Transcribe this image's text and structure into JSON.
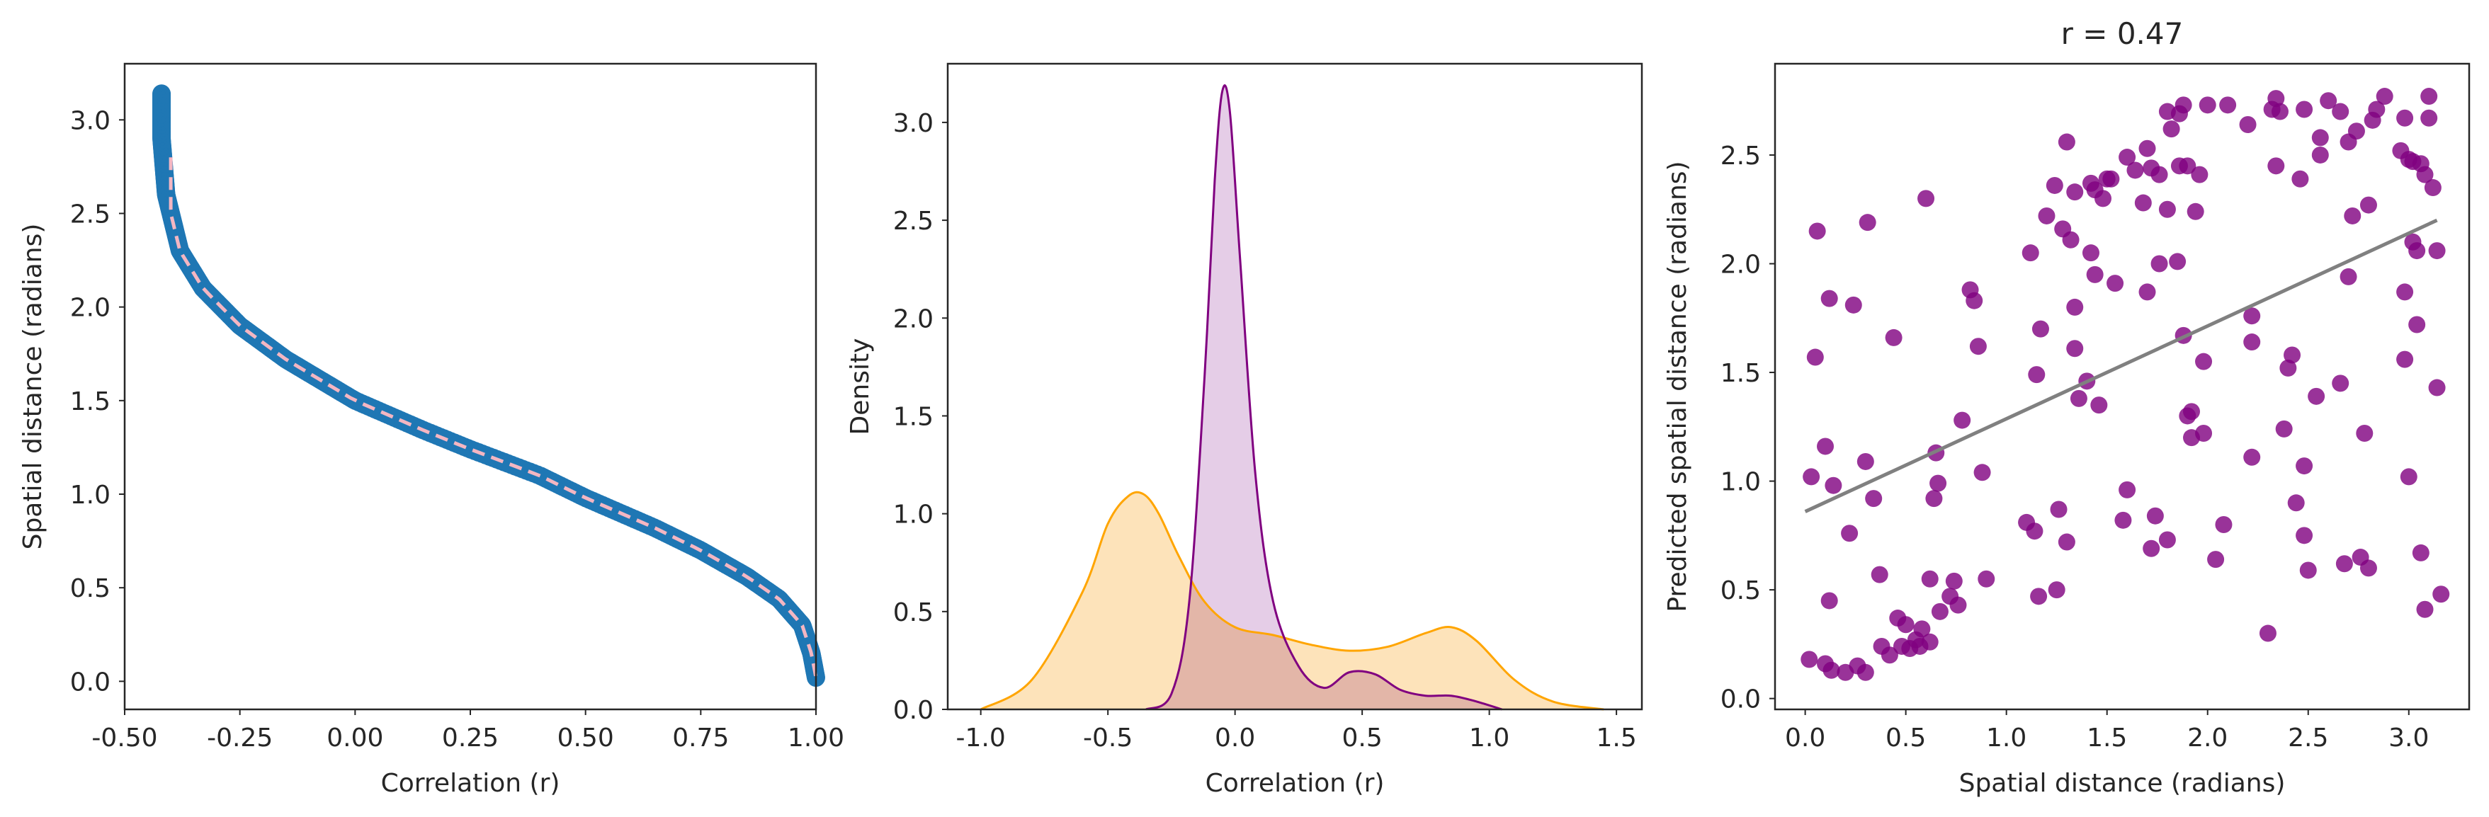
{
  "chart_data": [
    {
      "type": "scatter",
      "xlabel": "Correlation (r)",
      "ylabel": "Spatial distance (radians)",
      "xlim": [
        -0.5,
        1.0
      ],
      "ylim": [
        -0.15,
        3.3
      ],
      "xticks": [
        "-0.50",
        "-0.25",
        "0.00",
        "0.25",
        "0.50",
        "0.75",
        "1.00"
      ],
      "yticks": [
        "0.0",
        "0.5",
        "1.0",
        "1.5",
        "2.0",
        "2.5",
        "3.0"
      ],
      "grid": false,
      "series": [
        {
          "kind": "scatter",
          "color": "#1f77b4",
          "x_range": [
            -0.42,
            1.0
          ],
          "y_range": [
            0.0,
            3.14
          ],
          "description_points": [
            [
              -0.42,
              3.14
            ],
            [
              -0.42,
              2.9
            ],
            [
              -0.41,
              2.6
            ],
            [
              -0.38,
              2.3
            ],
            [
              -0.33,
              2.1
            ],
            [
              -0.25,
              1.9
            ],
            [
              -0.15,
              1.72
            ],
            [
              0.0,
              1.5
            ],
            [
              0.15,
              1.34
            ],
            [
              0.25,
              1.24
            ],
            [
              0.4,
              1.1
            ],
            [
              0.5,
              0.98
            ],
            [
              0.65,
              0.82
            ],
            [
              0.75,
              0.7
            ],
            [
              0.85,
              0.56
            ],
            [
              0.92,
              0.44
            ],
            [
              0.97,
              0.3
            ],
            [
              0.99,
              0.15
            ],
            [
              1.0,
              0.02
            ]
          ]
        },
        {
          "kind": "line",
          "style": "dashed",
          "color": "#f4b6c2",
          "x_range": [
            -0.4,
            1.0
          ],
          "y_range": [
            2.8,
            0.02
          ]
        }
      ]
    },
    {
      "type": "area",
      "xlabel": "Correlation (r)",
      "ylabel": "Density",
      "xlim": [
        -1.13,
        1.6
      ],
      "ylim": [
        0.0,
        3.3
      ],
      "xticks": [
        "-1.0",
        "-0.5",
        "0.0",
        "0.5",
        "1.0",
        "1.5"
      ],
      "yticks": [
        "0.0",
        "0.5",
        "1.0",
        "1.5",
        "2.0",
        "2.5",
        "3.0"
      ],
      "grid": false,
      "series": [
        {
          "color": "#800080",
          "fill": "#dcbcdf",
          "x": [
            -0.35,
            -0.25,
            -0.18,
            -0.12,
            -0.08,
            -0.05,
            -0.02,
            0.02,
            0.08,
            0.15,
            0.25,
            0.35,
            0.45,
            0.55,
            0.65,
            0.75,
            0.85,
            0.95,
            1.05
          ],
          "y": [
            0.0,
            0.08,
            0.55,
            1.7,
            2.7,
            3.16,
            3.05,
            2.3,
            1.2,
            0.55,
            0.22,
            0.11,
            0.19,
            0.18,
            0.1,
            0.07,
            0.07,
            0.04,
            0.0
          ]
        },
        {
          "color": "#ffa500",
          "fill": "#fde0b2",
          "x": [
            -1.0,
            -0.8,
            -0.6,
            -0.5,
            -0.42,
            -0.36,
            -0.3,
            -0.22,
            -0.12,
            0.0,
            0.15,
            0.3,
            0.45,
            0.6,
            0.75,
            0.85,
            0.95,
            1.1,
            1.25,
            1.45
          ],
          "y": [
            0.0,
            0.15,
            0.6,
            0.95,
            1.09,
            1.1,
            1.0,
            0.78,
            0.55,
            0.42,
            0.38,
            0.33,
            0.3,
            0.32,
            0.39,
            0.42,
            0.35,
            0.15,
            0.04,
            0.0
          ]
        }
      ]
    },
    {
      "type": "scatter",
      "title": "r = 0.47",
      "xlabel": "Spatial distance (radians)",
      "ylabel": "Predicted spatial distance (radians)",
      "xlim": [
        -0.15,
        3.3
      ],
      "ylim": [
        -0.05,
        2.92
      ],
      "xticks": [
        "0.0",
        "0.5",
        "1.0",
        "1.5",
        "2.0",
        "2.5",
        "3.0"
      ],
      "yticks": [
        "0.0",
        "0.5",
        "1.0",
        "1.5",
        "2.0",
        "2.5"
      ],
      "grid": false,
      "series": [
        {
          "kind": "scatter",
          "color": "#800080",
          "points": [
            [
              0.02,
              0.18
            ],
            [
              0.03,
              1.02
            ],
            [
              0.05,
              1.57
            ],
            [
              0.06,
              2.15
            ],
            [
              0.1,
              0.16
            ],
            [
              0.1,
              1.16
            ],
            [
              0.12,
              0.45
            ],
            [
              0.13,
              0.13
            ],
            [
              0.12,
              1.84
            ],
            [
              0.14,
              0.98
            ],
            [
              0.2,
              0.12
            ],
            [
              0.22,
              0.76
            ],
            [
              0.24,
              1.81
            ],
            [
              0.26,
              0.15
            ],
            [
              0.3,
              0.12
            ],
            [
              0.3,
              1.09
            ],
            [
              0.31,
              2.19
            ],
            [
              0.34,
              0.92
            ],
            [
              0.37,
              0.57
            ],
            [
              0.38,
              0.24
            ],
            [
              0.42,
              0.2
            ],
            [
              0.44,
              1.66
            ],
            [
              0.46,
              0.37
            ],
            [
              0.48,
              0.24
            ],
            [
              0.5,
              0.34
            ],
            [
              0.52,
              0.23
            ],
            [
              0.55,
              0.27
            ],
            [
              0.57,
              0.24
            ],
            [
              0.58,
              0.32
            ],
            [
              0.6,
              2.3
            ],
            [
              0.62,
              0.55
            ],
            [
              0.62,
              0.26
            ],
            [
              0.64,
              0.92
            ],
            [
              0.65,
              1.13
            ],
            [
              0.66,
              0.99
            ],
            [
              0.67,
              0.4
            ],
            [
              0.72,
              0.47
            ],
            [
              0.74,
              0.54
            ],
            [
              0.76,
              0.43
            ],
            [
              0.78,
              1.28
            ],
            [
              0.82,
              1.88
            ],
            [
              0.84,
              1.83
            ],
            [
              0.86,
              1.62
            ],
            [
              0.88,
              1.04
            ],
            [
              0.9,
              0.55
            ],
            [
              1.1,
              0.81
            ],
            [
              1.12,
              2.05
            ],
            [
              1.14,
              0.77
            ],
            [
              1.15,
              1.49
            ],
            [
              1.16,
              0.47
            ],
            [
              1.17,
              1.7
            ],
            [
              1.2,
              2.22
            ],
            [
              1.24,
              2.36
            ],
            [
              1.25,
              0.5
            ],
            [
              1.26,
              0.87
            ],
            [
              1.28,
              2.16
            ],
            [
              1.3,
              2.56
            ],
            [
              1.3,
              0.72
            ],
            [
              1.32,
              2.11
            ],
            [
              1.34,
              1.61
            ],
            [
              1.34,
              1.8
            ],
            [
              1.34,
              2.33
            ],
            [
              1.36,
              1.38
            ],
            [
              1.4,
              1.46
            ],
            [
              1.42,
              2.37
            ],
            [
              1.42,
              2.05
            ],
            [
              1.44,
              2.34
            ],
            [
              1.44,
              1.95
            ],
            [
              1.46,
              1.35
            ],
            [
              1.48,
              2.3
            ],
            [
              1.5,
              2.39
            ],
            [
              1.52,
              2.39
            ],
            [
              1.54,
              1.91
            ],
            [
              1.58,
              0.82
            ],
            [
              1.6,
              0.96
            ],
            [
              1.6,
              2.49
            ],
            [
              1.64,
              2.43
            ],
            [
              1.68,
              2.28
            ],
            [
              1.7,
              1.87
            ],
            [
              1.7,
              2.53
            ],
            [
              1.72,
              2.44
            ],
            [
              1.72,
              0.69
            ],
            [
              1.74,
              0.84
            ],
            [
              1.76,
              2.0
            ],
            [
              1.76,
              2.41
            ],
            [
              1.8,
              0.73
            ],
            [
              1.8,
              2.25
            ],
            [
              1.8,
              2.7
            ],
            [
              1.82,
              2.62
            ],
            [
              1.85,
              2.01
            ],
            [
              1.86,
              2.45
            ],
            [
              1.86,
              2.69
            ],
            [
              1.88,
              2.73
            ],
            [
              1.88,
              1.67
            ],
            [
              1.9,
              2.45
            ],
            [
              1.9,
              1.3
            ],
            [
              1.92,
              1.2
            ],
            [
              1.92,
              1.32
            ],
            [
              1.94,
              2.24
            ],
            [
              1.96,
              2.41
            ],
            [
              1.98,
              1.55
            ],
            [
              1.98,
              1.22
            ],
            [
              2.0,
              2.73
            ],
            [
              2.04,
              0.64
            ],
            [
              2.08,
              0.8
            ],
            [
              2.1,
              2.73
            ],
            [
              2.2,
              2.64
            ],
            [
              2.22,
              1.11
            ],
            [
              2.22,
              1.76
            ],
            [
              2.22,
              1.64
            ],
            [
              2.3,
              0.3
            ],
            [
              2.32,
              2.71
            ],
            [
              2.34,
              2.76
            ],
            [
              2.34,
              2.45
            ],
            [
              2.36,
              2.7
            ],
            [
              2.38,
              1.24
            ],
            [
              2.4,
              1.52
            ],
            [
              2.42,
              1.58
            ],
            [
              2.44,
              0.9
            ],
            [
              2.46,
              2.39
            ],
            [
              2.48,
              2.71
            ],
            [
              2.48,
              1.07
            ],
            [
              2.48,
              0.75
            ],
            [
              2.5,
              0.59
            ],
            [
              2.54,
              1.39
            ],
            [
              2.56,
              2.5
            ],
            [
              2.56,
              2.58
            ],
            [
              2.6,
              2.75
            ],
            [
              2.66,
              2.7
            ],
            [
              2.66,
              1.45
            ],
            [
              2.68,
              0.62
            ],
            [
              2.7,
              2.56
            ],
            [
              2.7,
              1.94
            ],
            [
              2.72,
              2.22
            ],
            [
              2.74,
              2.61
            ],
            [
              2.76,
              0.65
            ],
            [
              2.78,
              1.22
            ],
            [
              2.8,
              0.6
            ],
            [
              2.8,
              2.27
            ],
            [
              2.82,
              2.66
            ],
            [
              2.84,
              2.71
            ],
            [
              2.88,
              2.77
            ],
            [
              2.96,
              2.52
            ],
            [
              2.98,
              2.67
            ],
            [
              2.98,
              1.87
            ],
            [
              2.98,
              1.56
            ],
            [
              3.0,
              1.02
            ],
            [
              3.0,
              2.48
            ],
            [
              3.02,
              2.47
            ],
            [
              3.02,
              2.1
            ],
            [
              3.04,
              1.72
            ],
            [
              3.04,
              2.06
            ],
            [
              3.06,
              2.46
            ],
            [
              3.06,
              0.67
            ],
            [
              3.08,
              2.41
            ],
            [
              3.08,
              0.41
            ],
            [
              3.1,
              2.77
            ],
            [
              3.1,
              2.67
            ],
            [
              3.12,
              2.35
            ],
            [
              3.14,
              1.43
            ],
            [
              3.14,
              2.06
            ],
            [
              3.16,
              0.48
            ]
          ]
        },
        {
          "kind": "line",
          "color": "#808080",
          "x": [
            0.0,
            3.14
          ],
          "y": [
            0.86,
            2.2
          ]
        }
      ]
    }
  ]
}
